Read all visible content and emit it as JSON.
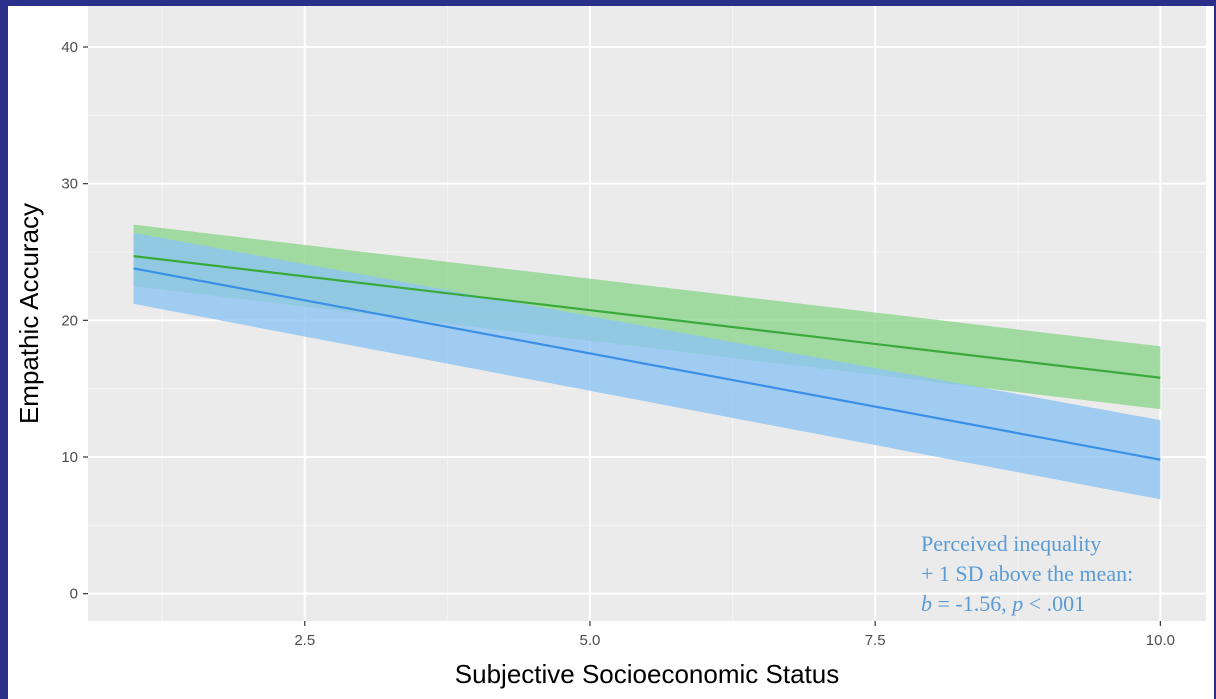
{
  "chart_data": {
    "type": "line",
    "title": "",
    "xlabel": "Subjective Socioeconomic Status",
    "ylabel": "Empathic Accuracy",
    "xlim": [
      0.6,
      10.4
    ],
    "ylim": [
      -2,
      43
    ],
    "x_ticks": [
      2.5,
      5.0,
      7.5,
      10.0
    ],
    "x_tick_labels": [
      "2.5",
      "5.0",
      "7.5",
      "10.0"
    ],
    "y_ticks": [
      0,
      10,
      20,
      30,
      40
    ],
    "y_tick_labels": [
      "0",
      "10",
      "20",
      "30",
      "40"
    ],
    "grid": true,
    "legend": "none",
    "x": [
      1,
      10
    ],
    "series": [
      {
        "color": "#3aaa3a",
        "band_color": "#8fd68f",
        "values": [
          24.7,
          15.8
        ],
        "lower": [
          22.5,
          13.5
        ],
        "upper": [
          27.0,
          18.1
        ]
      },
      {
        "color": "#3a8fe6",
        "band_color": "#8ec4f2",
        "values": [
          23.8,
          9.8
        ],
        "lower": [
          21.2,
          6.9
        ],
        "upper": [
          26.4,
          12.7
        ]
      }
    ],
    "annotation": {
      "lines": [
        "Perceived inequality",
        "+ 1 SD above the mean:"
      ],
      "stat_b_symbol": "b",
      "stat_b_value": " = -1.56, ",
      "stat_p_symbol": "p",
      "stat_p_value": " < .001"
    }
  }
}
